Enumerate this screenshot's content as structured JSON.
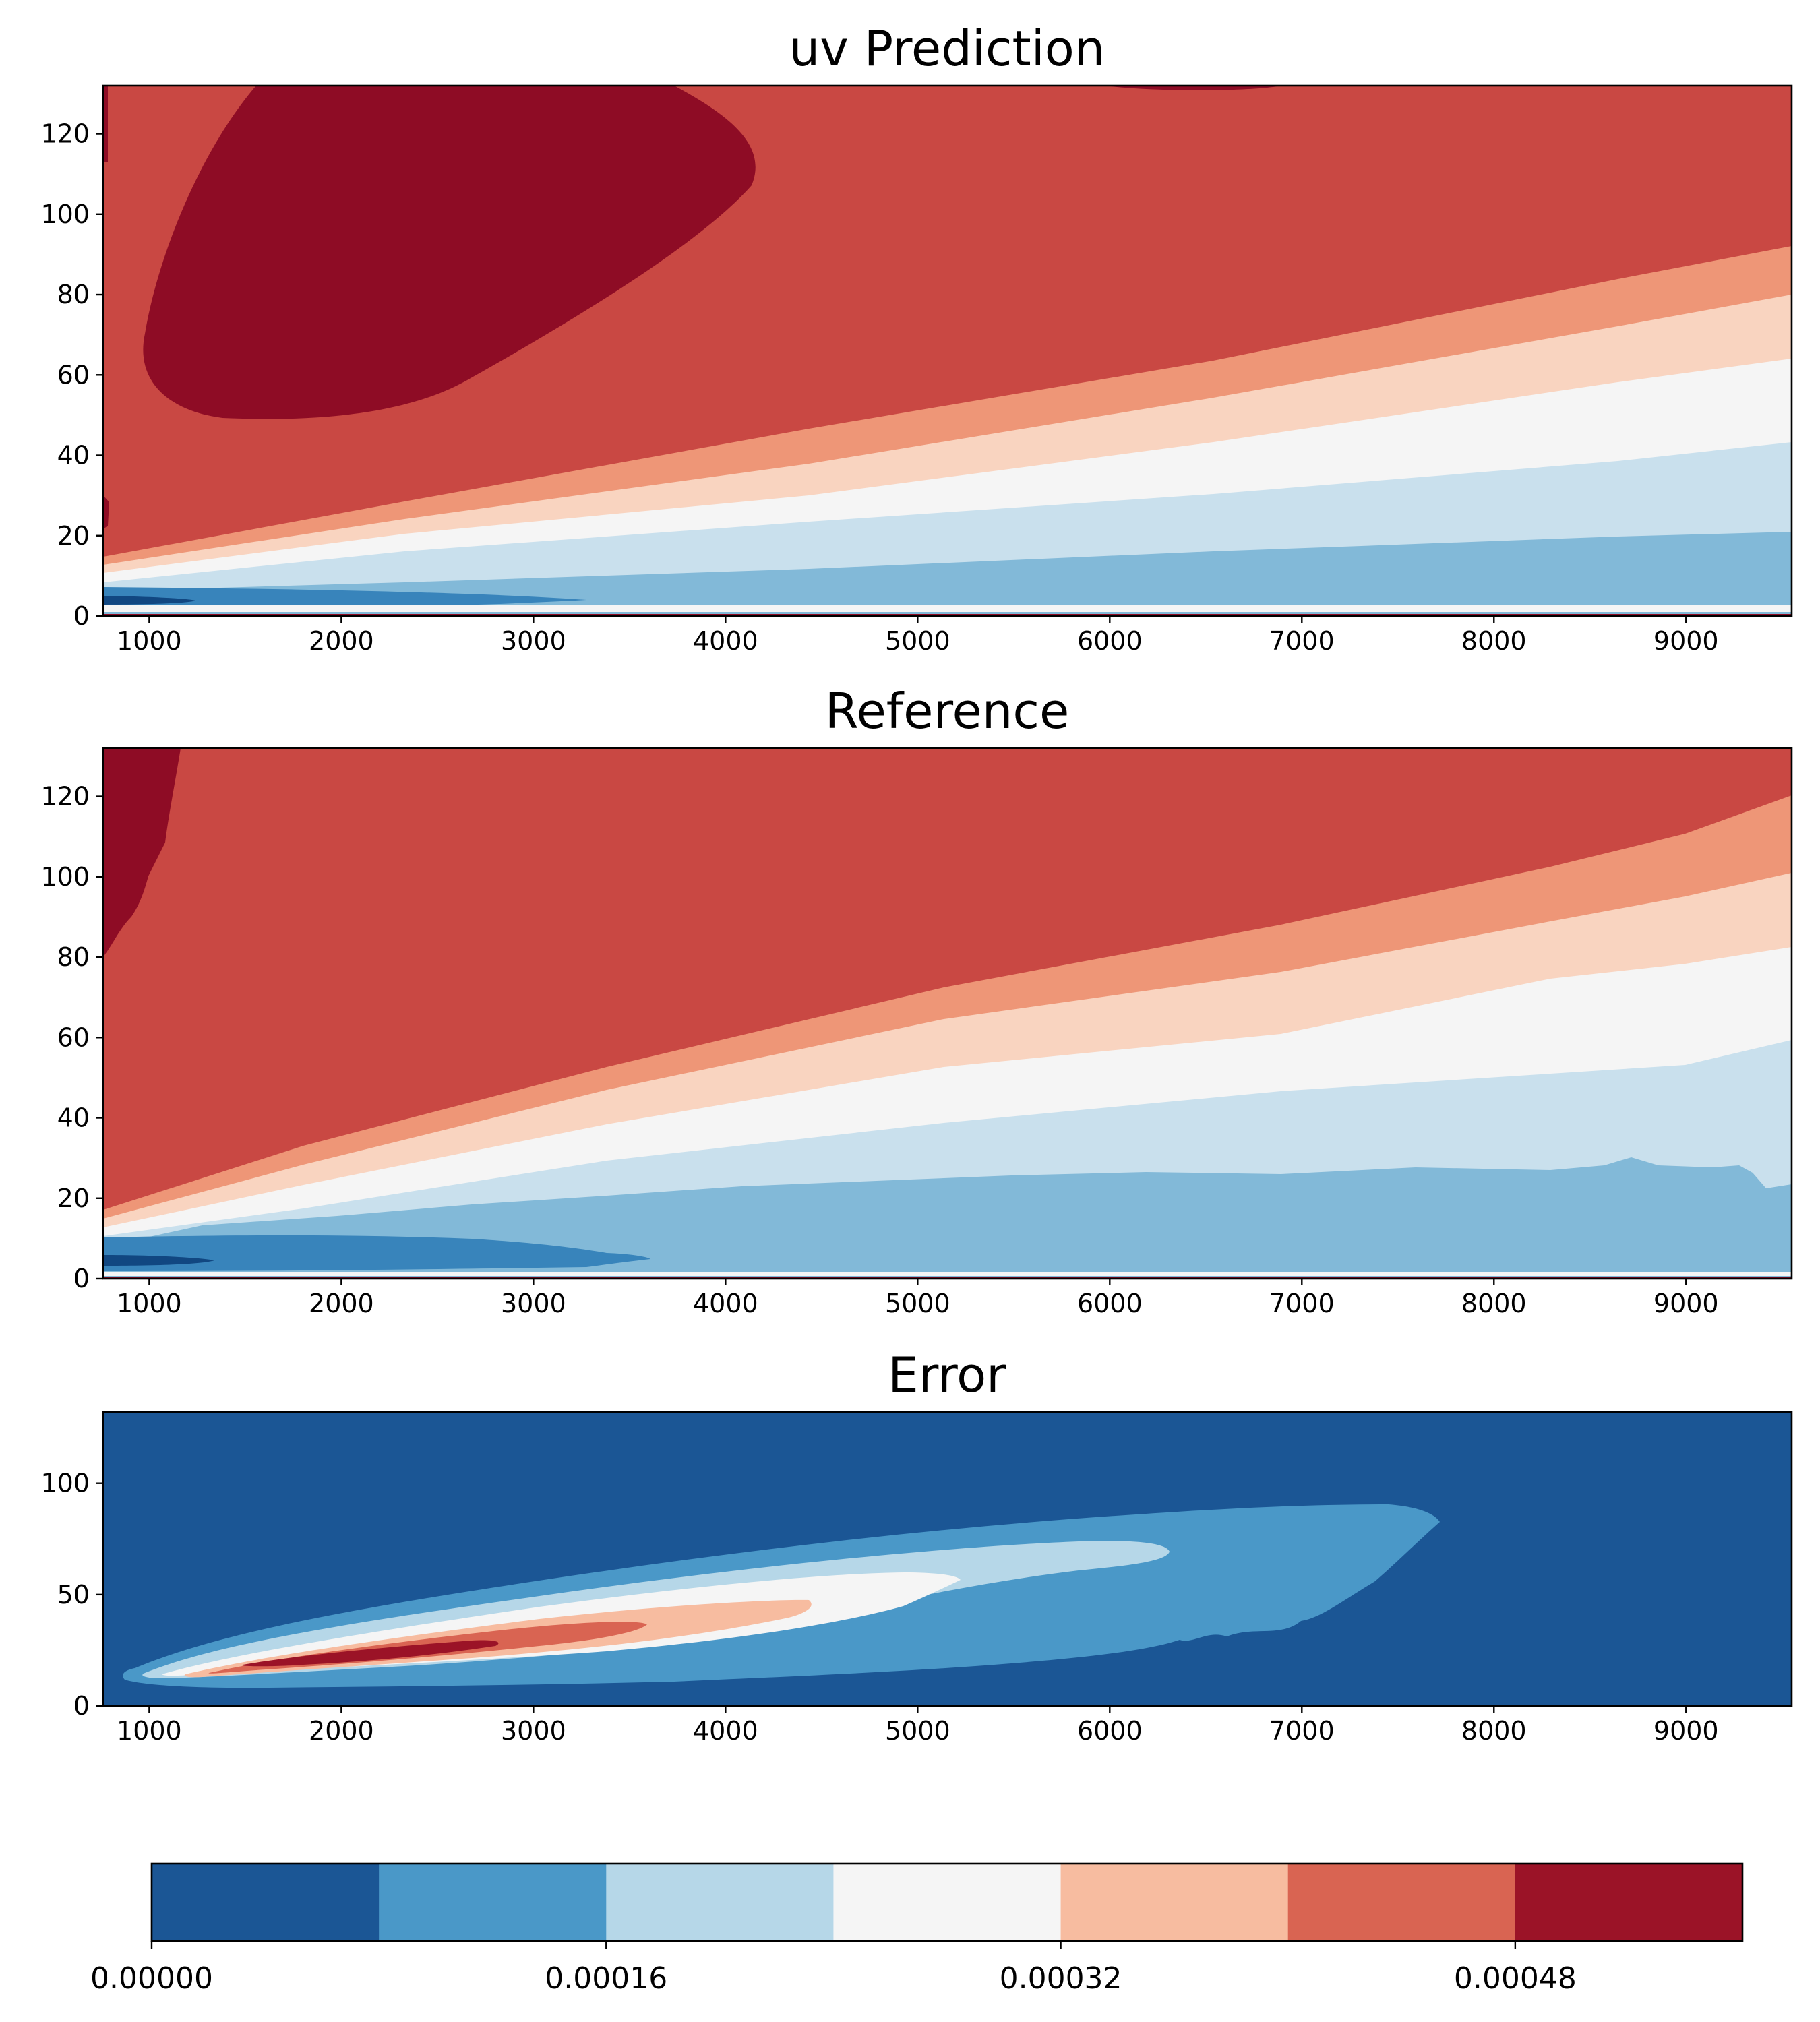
{
  "chart_data": [
    {
      "type": "contour",
      "title": "uv Prediction",
      "xlabel": "",
      "ylabel": "",
      "xlim": [
        760,
        9550
      ],
      "ylim": [
        0,
        132
      ],
      "xticks": [
        1000,
        2000,
        3000,
        4000,
        5000,
        6000,
        7000,
        8000,
        9000
      ],
      "yticks": [
        0,
        20,
        40,
        60,
        80,
        100,
        120
      ],
      "colormap": "RdBu_r",
      "regions": [
        {
          "level": "darkest-red",
          "color": "#8e0c25",
          "description": "closed core at x≈1000–4200, y≈48–132; thin strip at top near x≈6300"
        },
        {
          "level": "red",
          "color": "#c94843",
          "description": "upper background above y≈17 at x=760 rising to y≈120 at x=9550"
        },
        {
          "level": "salmon",
          "color": "#ee9677",
          "description": "band y≈15→100 along x"
        },
        {
          "level": "light-peach",
          "color": "#f9d4c0",
          "description": "band y≈13→82 along x"
        },
        {
          "level": "white",
          "color": "#f5f5f5",
          "description": "band y≈11→60 along x"
        },
        {
          "level": "light-blue",
          "color": "#c9e0ed",
          "description": "band y≈9→24 along x"
        },
        {
          "level": "mid-blue",
          "color": "#82b9d8",
          "description": "near-wall band y≈1–9"
        },
        {
          "level": "blue",
          "color": "#3884bb",
          "description": "wall jet core x<3300, y≈1–7"
        },
        {
          "level": "dark-blue",
          "color": "#114781",
          "description": "tip x<1300, y≈2–4"
        }
      ]
    },
    {
      "type": "contour",
      "title": "Reference",
      "xlabel": "",
      "ylabel": "",
      "xlim": [
        760,
        9550
      ],
      "ylim": [
        0,
        132
      ],
      "xticks": [
        1000,
        2000,
        3000,
        4000,
        5000,
        6000,
        7000,
        8000,
        9000
      ],
      "yticks": [
        0,
        20,
        40,
        60,
        80,
        100,
        120
      ],
      "colormap": "RdBu_r",
      "regions": [
        {
          "level": "darkest-red",
          "color": "#8e0c25",
          "description": "patch at x≈760–1200, y≈79–132"
        },
        {
          "level": "red",
          "color": "#c94843",
          "description": "upper background above y≈17 at x=760 rising to y≈120"
        },
        {
          "level": "salmon",
          "color": "#ee9677",
          "description": "band y≈15→102 along x"
        },
        {
          "level": "light-peach",
          "color": "#f9d4c0",
          "description": "band y≈13→82 along x"
        },
        {
          "level": "white",
          "color": "#f5f5f5",
          "description": "band y≈11→58 along x"
        },
        {
          "level": "light-blue",
          "color": "#c9e0ed",
          "description": "band y≈9→28 along x, wavy lower edge"
        },
        {
          "level": "mid-blue",
          "color": "#82b9d8",
          "description": "near-wall band y≈1–20"
        },
        {
          "level": "blue",
          "color": "#3884bb",
          "description": "wall jet core x<3600, y≈1–10"
        },
        {
          "level": "dark-blue",
          "color": "#114781",
          "description": "tip x<1400, y≈2–5"
        }
      ]
    },
    {
      "type": "contour",
      "title": "Error",
      "xlabel": "",
      "ylabel": "",
      "xlim": [
        760,
        9550
      ],
      "ylim": [
        0,
        132
      ],
      "xticks": [
        1000,
        2000,
        3000,
        4000,
        5000,
        6000,
        7000,
        8000,
        9000
      ],
      "yticks": [
        0,
        50,
        100
      ],
      "colormap": "RdBu_r",
      "regions": [
        {
          "level": "0.00000–0.00008",
          "color": "#1b5695",
          "description": "background"
        },
        {
          "level": "0.00008–0.00016",
          "color": "#4a98c8",
          "description": "plume x≈850–7700, y≈2–90"
        },
        {
          "level": "0.00016–0.00024",
          "color": "#b6d7e8",
          "description": "x≈900–6300, y≈5–72"
        },
        {
          "level": "0.00024–0.00032",
          "color": "#f5f5f5",
          "description": "x≈1000–5300, y≈8–55"
        },
        {
          "level": "0.00032–0.00040",
          "color": "#f7bca0",
          "description": "x≈1150–4450, y≈11–45"
        },
        {
          "level": "0.00040–0.00048",
          "color": "#d96452",
          "description": "x≈1350–3650, y≈14–37"
        },
        {
          "level": "0.00048–0.00056",
          "color": "#9b1327",
          "description": "x≈1600–2850, y≈17–29"
        }
      ]
    }
  ],
  "colorbar": {
    "ticks": [
      "0.00000",
      "0.00016",
      "0.00032",
      "0.00048"
    ],
    "tick_values": [
      0.0,
      0.00016,
      0.00032,
      0.00048
    ],
    "range": [
      0.0,
      0.00056
    ],
    "colors": [
      "#1b5695",
      "#4a98c8",
      "#b6d7e8",
      "#f5f5f5",
      "#f7bca0",
      "#d96452",
      "#9b1327"
    ]
  }
}
